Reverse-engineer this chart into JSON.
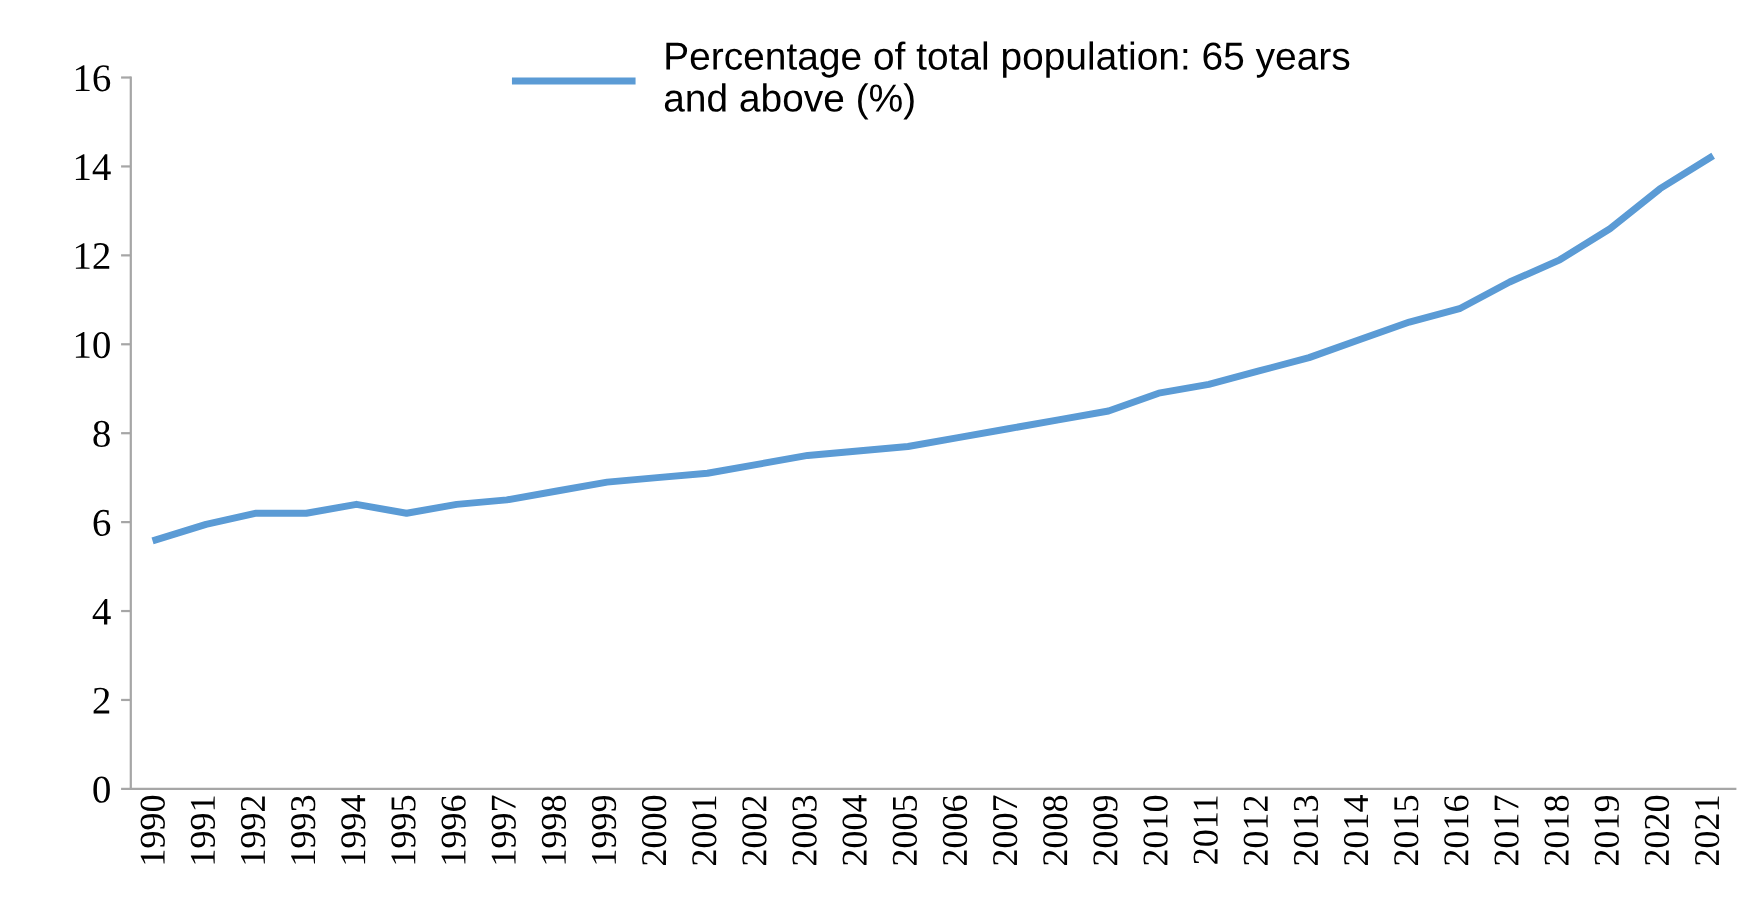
{
  "chart_data": {
    "type": "line",
    "categories": [
      "1990",
      "1991",
      "1992",
      "1993",
      "1994",
      "1995",
      "1996",
      "1997",
      "1998",
      "1999",
      "2000",
      "2001",
      "2002",
      "2003",
      "2004",
      "2005",
      "2006",
      "2007",
      "2008",
      "2009",
      "2010",
      "2011",
      "2012",
      "2013",
      "2014",
      "2015",
      "2016",
      "2017",
      "2018",
      "2019",
      "2020",
      "2021"
    ],
    "series": [
      {
        "name": "Percentage of total population: 65 years\nand above (%)",
        "color": "#5b9bd5",
        "values": [
          5.6,
          5.95,
          6.2,
          6.2,
          6.4,
          6.2,
          6.4,
          6.5,
          6.7,
          6.9,
          7.0,
          7.1,
          7.3,
          7.5,
          7.6,
          7.7,
          7.9,
          8.1,
          8.3,
          8.5,
          8.9,
          9.1,
          9.4,
          9.7,
          10.1,
          10.5,
          10.8,
          11.4,
          11.9,
          12.6,
          13.5,
          14.2
        ]
      }
    ],
    "ylim": [
      0,
      16
    ],
    "yticks": [
      0,
      2,
      4,
      6,
      8,
      10,
      12,
      14,
      16
    ],
    "grid": false,
    "legend": "top",
    "marker": "none",
    "line_style": "solid"
  }
}
